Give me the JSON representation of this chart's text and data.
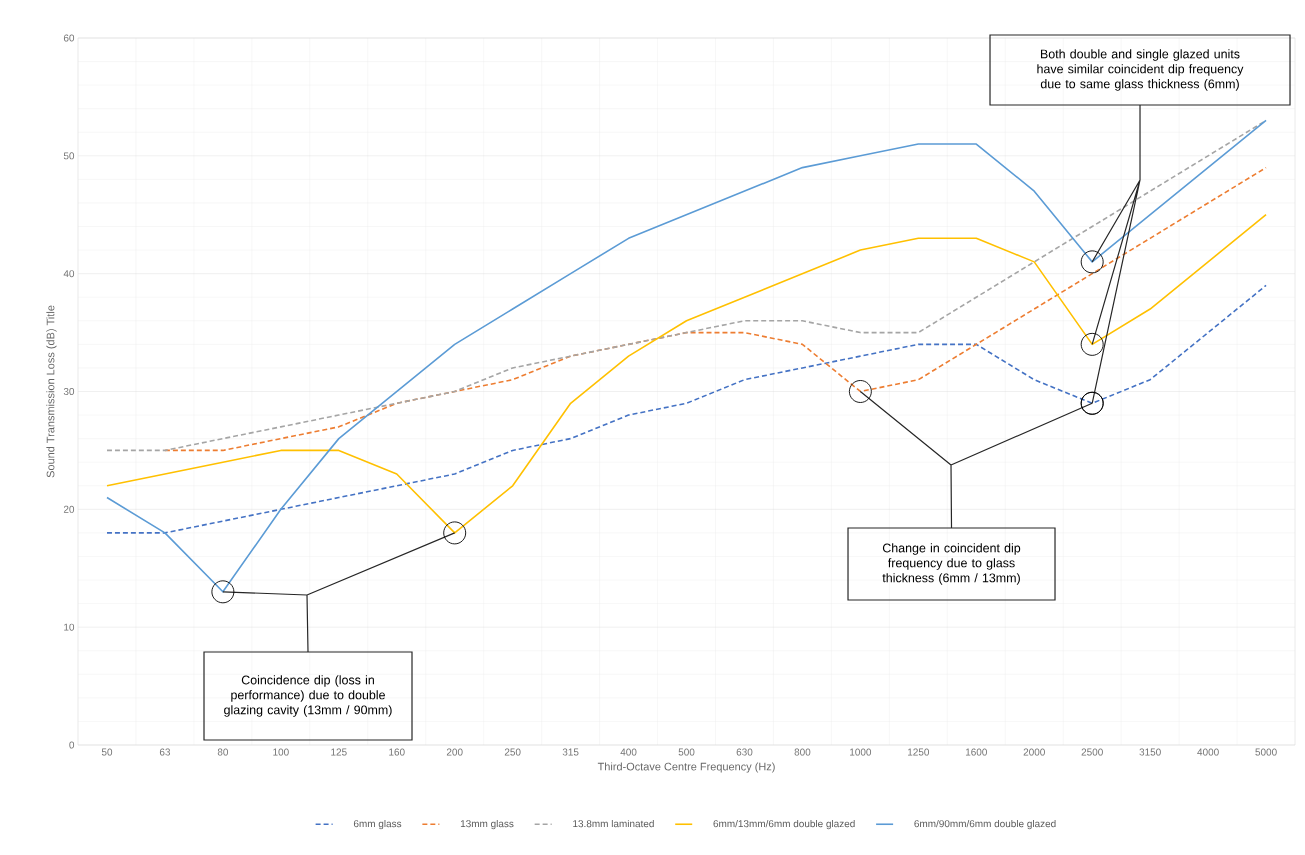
{
  "chart_data": {
    "type": "line",
    "xlabel": "Third-Octave Centre  Frequency (Hz)",
    "ylabel": "Sound Transmission Loss (dB) Title",
    "categories": [
      "50",
      "63",
      "80",
      "100",
      "125",
      "160",
      "200",
      "250",
      "315",
      "400",
      "500",
      "630",
      "800",
      "1000",
      "1250",
      "1600",
      "2000",
      "2500",
      "3150",
      "4000",
      "5000"
    ],
    "ylim": [
      0,
      60
    ],
    "yticks": [
      0,
      10,
      20,
      30,
      40,
      50,
      60
    ],
    "grid": true,
    "legend": "bottom",
    "series": [
      {
        "name": "6mm glass",
        "color": "#4472c4",
        "line_style": "dashed",
        "values": [
          18,
          18,
          19,
          20,
          21,
          22,
          23,
          25,
          26,
          28,
          29,
          31,
          32,
          33,
          34,
          34,
          31,
          29,
          31,
          35,
          39
        ]
      },
      {
        "name": "13mm glass",
        "color": "#ed7d31",
        "line_style": "dashed",
        "values": [
          null,
          25,
          25,
          26,
          27,
          29,
          30,
          31,
          33,
          34,
          35,
          35,
          34,
          30,
          31,
          34,
          37,
          40,
          43,
          46,
          49
        ]
      },
      {
        "name": "13.8mm laminated",
        "color": "#a5a5a5",
        "line_style": "dashed",
        "values": [
          25,
          25,
          26,
          27,
          28,
          29,
          30,
          32,
          33,
          34,
          35,
          36,
          36,
          35,
          35,
          38,
          41,
          44,
          47,
          50,
          53
        ]
      },
      {
        "name": "6mm/13mm/6mm double glazed",
        "color": "#ffc000",
        "line_style": "solid",
        "values": [
          22,
          23,
          24,
          25,
          25,
          23,
          18,
          22,
          29,
          33,
          36,
          38,
          40,
          42,
          43,
          43,
          41,
          34,
          37,
          41,
          45
        ]
      },
      {
        "name": "6mm/90mm/6mm double glazed",
        "color": "#5b9bd5",
        "line_style": "solid",
        "values": [
          21,
          18,
          13,
          20,
          26,
          30,
          34,
          37,
          40,
          43,
          45,
          47,
          49,
          50,
          51,
          51,
          47,
          41,
          45,
          49,
          53
        ]
      }
    ],
    "annotations": [
      "Coincidence dip (loss in performance) due to double glazing cavity (13mm / 90mm)",
      "Change in coincident dip frequency due to glass thickness (6mm / 13mm)",
      "Both double and single glazed units have similar coincident dip frequency due to same glass thickness (6mm)"
    ]
  }
}
